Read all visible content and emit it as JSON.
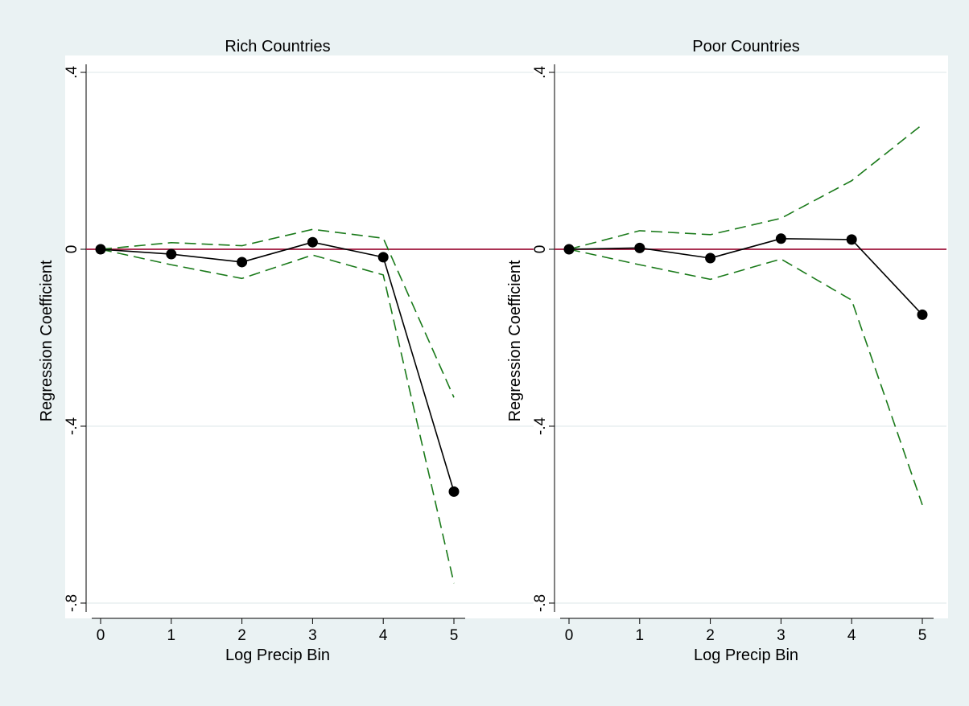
{
  "chart_data": [
    {
      "type": "line",
      "title": "Rich Countries",
      "xlabel": "Log Precip Bin",
      "ylabel": "Regression Coefficient",
      "x": [
        0,
        1,
        2,
        3,
        4,
        5
      ],
      "xticks": [
        "0",
        "1",
        "2",
        "3",
        "4",
        "5"
      ],
      "yticks": [
        {
          "value": 0.4,
          "label": ".4"
        },
        {
          "value": 0,
          "label": "0"
        },
        {
          "value": -0.4,
          "label": "-.4"
        },
        {
          "value": -0.8,
          "label": "-.8"
        }
      ],
      "ylim": [
        -0.82,
        0.42
      ],
      "xlim": [
        -0.2,
        5.2
      ],
      "grid": true,
      "reference_line": 0,
      "series": [
        {
          "values": [
            0,
            -0.011,
            -0.029,
            0.016,
            -0.018,
            -0.548
          ]
        },
        {
          "values": [
            0,
            0.015,
            0.008,
            0.045,
            0.025,
            -0.335
          ]
        },
        {
          "values": [
            0,
            -0.035,
            -0.066,
            -0.013,
            -0.058,
            -0.755
          ]
        }
      ]
    },
    {
      "type": "line",
      "title": "Poor Countries",
      "xlabel": "Log Precip Bin",
      "ylabel": "Regression Coefficient",
      "x": [
        0,
        1,
        2,
        3,
        4,
        5
      ],
      "xticks": [
        "0",
        "1",
        "2",
        "3",
        "4",
        "5"
      ],
      "yticks": [
        {
          "value": 0.4,
          "label": ".4"
        },
        {
          "value": 0,
          "label": "0"
        },
        {
          "value": -0.4,
          "label": "-.4"
        },
        {
          "value": -0.8,
          "label": "-.8"
        }
      ],
      "ylim": [
        -0.82,
        0.42
      ],
      "xlim": [
        -0.2,
        5.2
      ],
      "grid": true,
      "reference_line": 0,
      "series": [
        {
          "values": [
            0,
            0.003,
            -0.02,
            0.024,
            0.022,
            -0.148
          ]
        },
        {
          "values": [
            0,
            0.042,
            0.033,
            0.07,
            0.155,
            0.282
          ]
        },
        {
          "values": [
            0,
            -0.035,
            -0.068,
            -0.022,
            -0.115,
            -0.578
          ]
        }
      ]
    }
  ],
  "colors": {
    "background": "#eaf2f3",
    "plot_area": "#ffffff",
    "grid": "#e4ecee",
    "point_estimate": "#000000",
    "confidence_band": "#1a7a1a",
    "zero_line": "#a0163c"
  }
}
